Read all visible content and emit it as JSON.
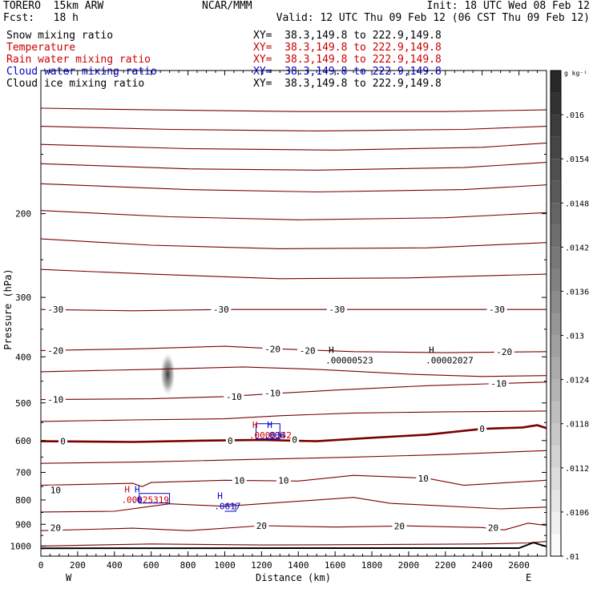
{
  "header": {
    "model": "TORERO  15km ARW",
    "center": "NCAR/MMM",
    "init": "Init: 18 UTC Wed 08 Feb 12",
    "fcst": "Fcst:   18 h",
    "valid": "Valid: 12 UTC Thu 09 Feb 12 (06 CST Thu 09 Feb 12)"
  },
  "fields": [
    {
      "name": "Snow mixing ratio",
      "color": "#000000"
    },
    {
      "name": "Temperature",
      "color": "#cc0000"
    },
    {
      "name": "Rain water mixing ratio",
      "color": "#cc0000"
    },
    {
      "name": "Cloud water mixing ratio",
      "color": "#0000cc"
    },
    {
      "name": "Cloud ice mixing ratio",
      "color": "#000000"
    }
  ],
  "xy_text": "XY=  38.3,149.8 to 222.9,149.8",
  "colors": {
    "temperature": "#7a0000",
    "cloud_water": "#0000cc",
    "rain": "#cc0000",
    "frame": "#000000"
  },
  "chart_data": {
    "type": "line",
    "xlabel": "Distance (km)",
    "ylabel": "Pressure (hPa)",
    "xlim": [
      0,
      2750
    ],
    "ylim": [
      1050,
      100
    ],
    "y_scale": "log",
    "x_ticks": [
      0,
      200,
      400,
      600,
      800,
      1000,
      1200,
      1400,
      1600,
      1800,
      2000,
      2200,
      2400,
      2600
    ],
    "y_ticks": [
      200,
      300,
      400,
      500,
      600,
      700,
      800,
      900,
      1000
    ],
    "endpoint_labels": {
      "left": "W",
      "right": "E"
    },
    "temperature_labels": [
      {
        "text": "-30",
        "x": 80,
        "p": 318
      },
      {
        "text": "-30",
        "x": 980,
        "p": 318
      },
      {
        "text": "-30",
        "x": 1610,
        "p": 318
      },
      {
        "text": "-30",
        "x": 2480,
        "p": 318
      },
      {
        "text": "-20",
        "x": 80,
        "p": 388
      },
      {
        "text": "-20",
        "x": 1260,
        "p": 385
      },
      {
        "text": "-20",
        "x": 1450,
        "p": 388
      },
      {
        "text": "-20",
        "x": 2520,
        "p": 390
      },
      {
        "text": "-10",
        "x": 80,
        "p": 492
      },
      {
        "text": "-10",
        "x": 1050,
        "p": 485
      },
      {
        "text": "-10",
        "x": 1260,
        "p": 477
      },
      {
        "text": "-10",
        "x": 2490,
        "p": 455
      },
      {
        "text": "0",
        "x": 120,
        "p": 602
      },
      {
        "text": "0",
        "x": 1030,
        "p": 600
      },
      {
        "text": "0",
        "x": 1380,
        "p": 597
      },
      {
        "text": "0",
        "x": 2400,
        "p": 567
      },
      {
        "text": "10",
        "x": 80,
        "p": 763
      },
      {
        "text": "10",
        "x": 1080,
        "p": 727
      },
      {
        "text": "10",
        "x": 1320,
        "p": 728
      },
      {
        "text": "10",
        "x": 2080,
        "p": 721
      },
      {
        "text": "20",
        "x": 80,
        "p": 915
      },
      {
        "text": "20",
        "x": 1200,
        "p": 906
      },
      {
        "text": "20",
        "x": 1950,
        "p": 907
      },
      {
        "text": "20",
        "x": 2460,
        "p": 914
      }
    ],
    "temperature_lines": [
      {
        "kind": "thin",
        "points": [
          [
            0,
            120
          ],
          [
            600,
            121
          ],
          [
            1400,
            122
          ],
          [
            2200,
            122
          ],
          [
            2750,
            121
          ]
        ]
      },
      {
        "kind": "thin",
        "points": [
          [
            0,
            131
          ],
          [
            700,
            133
          ],
          [
            1500,
            134
          ],
          [
            2300,
            133
          ],
          [
            2750,
            131
          ]
        ]
      },
      {
        "kind": "thin",
        "points": [
          [
            0,
            143
          ],
          [
            800,
            146
          ],
          [
            1600,
            147
          ],
          [
            2400,
            145
          ],
          [
            2750,
            142
          ]
        ]
      },
      {
        "kind": "thin",
        "points": [
          [
            0,
            157
          ],
          [
            800,
            161
          ],
          [
            1500,
            162
          ],
          [
            2300,
            160
          ],
          [
            2750,
            156
          ]
        ]
      },
      {
        "kind": "thin",
        "points": [
          [
            0,
            173
          ],
          [
            800,
            178
          ],
          [
            1500,
            180
          ],
          [
            2300,
            178
          ],
          [
            2750,
            174
          ]
        ]
      },
      {
        "kind": "thin",
        "points": [
          [
            0,
            197
          ],
          [
            700,
            203
          ],
          [
            1400,
            206
          ],
          [
            2200,
            204
          ],
          [
            2750,
            199
          ]
        ]
      },
      {
        "kind": "thin",
        "points": [
          [
            0,
            226
          ],
          [
            600,
            233
          ],
          [
            1300,
            237
          ],
          [
            2100,
            236
          ],
          [
            2750,
            230
          ]
        ]
      },
      {
        "kind": "thin",
        "points": [
          [
            0,
            262
          ],
          [
            600,
            268
          ],
          [
            1300,
            274
          ],
          [
            2000,
            273
          ],
          [
            2750,
            268
          ]
        ]
      },
      {
        "kind": "thin",
        "points": [
          [
            0,
            318
          ],
          [
            500,
            320
          ],
          [
            1000,
            318
          ],
          [
            1600,
            318
          ],
          [
            2200,
            318
          ],
          [
            2750,
            318
          ]
        ]
      },
      {
        "kind": "thin",
        "points": [
          [
            0,
            388
          ],
          [
            500,
            385
          ],
          [
            1000,
            380
          ],
          [
            1300,
            385
          ],
          [
            1700,
            390
          ],
          [
            2200,
            392
          ],
          [
            2750,
            390
          ]
        ]
      },
      {
        "kind": "thin",
        "points": [
          [
            0,
            430
          ],
          [
            600,
            425
          ],
          [
            1100,
            420
          ],
          [
            1500,
            425
          ],
          [
            2000,
            435
          ],
          [
            2400,
            440
          ],
          [
            2750,
            438
          ]
        ]
      },
      {
        "kind": "thin",
        "points": [
          [
            0,
            492
          ],
          [
            600,
            490
          ],
          [
            1000,
            485
          ],
          [
            1300,
            477
          ],
          [
            1600,
            470
          ],
          [
            2100,
            460
          ],
          [
            2500,
            455
          ],
          [
            2750,
            452
          ]
        ]
      },
      {
        "kind": "thin",
        "points": [
          [
            0,
            547
          ],
          [
            500,
            543
          ],
          [
            1000,
            540
          ],
          [
            1300,
            532
          ],
          [
            1700,
            525
          ],
          [
            2200,
            522
          ],
          [
            2750,
            520
          ]
        ]
      },
      {
        "kind": "thick",
        "points": [
          [
            0,
            602
          ],
          [
            500,
            604
          ],
          [
            900,
            600
          ],
          [
            1200,
            598
          ],
          [
            1500,
            602
          ],
          [
            1800,
            592
          ],
          [
            2100,
            583
          ],
          [
            2400,
            567
          ],
          [
            2620,
            563
          ],
          [
            2700,
            557
          ],
          [
            2750,
            565
          ]
        ]
      },
      {
        "kind": "thin",
        "points": [
          [
            0,
            670
          ],
          [
            600,
            665
          ],
          [
            1100,
            658
          ],
          [
            1700,
            650
          ],
          [
            2200,
            642
          ],
          [
            2600,
            633
          ],
          [
            2750,
            630
          ]
        ]
      },
      {
        "kind": "thin",
        "points": [
          [
            0,
            745
          ],
          [
            500,
            738
          ],
          [
            550,
            750
          ],
          [
            600,
            735
          ],
          [
            1000,
            727
          ],
          [
            1400,
            730
          ],
          [
            1700,
            710
          ],
          [
            2100,
            720
          ],
          [
            2300,
            745
          ],
          [
            2550,
            735
          ],
          [
            2750,
            727
          ]
        ]
      },
      {
        "kind": "thin",
        "points": [
          [
            0,
            848
          ],
          [
            400,
            845
          ],
          [
            700,
            815
          ],
          [
            1000,
            825
          ],
          [
            1300,
            810
          ],
          [
            1700,
            790
          ],
          [
            1900,
            813
          ],
          [
            2100,
            820
          ],
          [
            2500,
            835
          ],
          [
            2750,
            828
          ]
        ]
      },
      {
        "kind": "thin",
        "points": [
          [
            0,
            928
          ],
          [
            500,
            917
          ],
          [
            800,
            928
          ],
          [
            1200,
            906
          ],
          [
            1600,
            912
          ],
          [
            2000,
            907
          ],
          [
            2400,
            914
          ],
          [
            2520,
            925
          ],
          [
            2650,
            895
          ],
          [
            2750,
            905
          ]
        ]
      },
      {
        "kind": "thin",
        "points": [
          [
            0,
            1000
          ],
          [
            600,
            990
          ],
          [
            1200,
            995
          ],
          [
            1800,
            993
          ],
          [
            2400,
            990
          ],
          [
            2650,
            985
          ],
          [
            2750,
            978
          ]
        ]
      }
    ],
    "terrain": [
      [
        0,
        1011
      ],
      [
        1400,
        1010
      ],
      [
        2500,
        1010
      ],
      [
        2600,
        1010
      ],
      [
        2680,
        983
      ],
      [
        2720,
        995
      ],
      [
        2750,
        1002
      ]
    ],
    "cloud_ice_blob": {
      "x": 690,
      "p": 435
    },
    "cloud_water_contours": [
      {
        "points": [
          [
            1170,
            560
          ],
          [
            1170,
            595
          ],
          [
            1300,
            595
          ],
          [
            1300,
            553
          ],
          [
            1170,
            553
          ],
          [
            1170,
            560
          ]
        ]
      },
      {
        "points": [
          [
            535,
            780
          ],
          [
            535,
            812
          ],
          [
            700,
            812
          ],
          [
            700,
            775
          ],
          [
            535,
            775
          ],
          [
            535,
            780
          ]
        ]
      },
      {
        "points": [
          [
            1000,
            817
          ],
          [
            1060,
            817
          ],
          [
            1060,
            845
          ],
          [
            1000,
            845
          ]
        ]
      }
    ],
    "extrema_labels": [
      {
        "symbol": "H",
        "value": ".00000523",
        "x": 1565,
        "p": 405,
        "color": "#000000"
      },
      {
        "symbol": "H",
        "value": ".00002027",
        "x": 2110,
        "p": 405,
        "color": "#000000"
      },
      {
        "symbol": "H",
        "value": ".0000342",
        "x": 1150,
        "p": 582,
        "color": "#cc0000"
      },
      {
        "symbol": "H",
        "value": ".006",
        "x": 1230,
        "p": 582,
        "color": "#0000cc"
      },
      {
        "symbol": "H",
        "value": ".00025319",
        "x": 455,
        "p": 795,
        "color": "#cc0000"
      },
      {
        "symbol": "H",
        "value": ".0",
        "x": 510,
        "p": 795,
        "color": "#0000cc"
      },
      {
        "symbol": "H",
        "value": ".0617",
        "x": 960,
        "p": 820,
        "color": "#0000cc"
      }
    ],
    "colorbar": {
      "unit": "g kg⁻¹",
      "ticks": [
        ".01",
        ".0106",
        ".0112",
        ".0118",
        ".0124",
        ".013",
        ".0136",
        ".0142",
        ".0148",
        ".0154",
        ".016"
      ],
      "min": 0.01,
      "max": 0.0166
    }
  }
}
